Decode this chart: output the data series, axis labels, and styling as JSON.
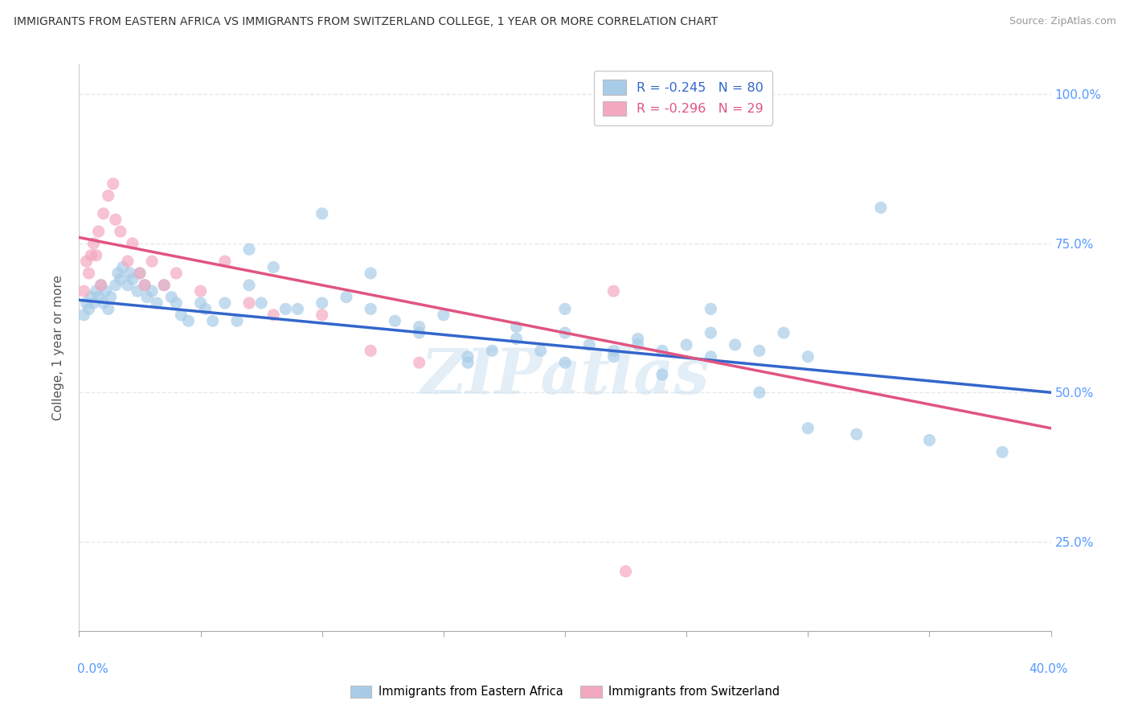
{
  "title": "IMMIGRANTS FROM EASTERN AFRICA VS IMMIGRANTS FROM SWITZERLAND COLLEGE, 1 YEAR OR MORE CORRELATION CHART",
  "source": "Source: ZipAtlas.com",
  "ylabel_label": "College, 1 year or more",
  "blue_color": "#a8cce8",
  "pink_color": "#f4a8c0",
  "blue_line_color": "#3366cc",
  "pink_line_color": "#e05580",
  "watermark": "ZIPatlas",
  "blue_scatter_x": [
    0.2,
    0.3,
    0.4,
    0.5,
    0.6,
    0.7,
    0.8,
    0.9,
    1.0,
    1.1,
    1.2,
    1.3,
    1.5,
    1.6,
    1.7,
    1.8,
    2.0,
    2.1,
    2.2,
    2.4,
    2.5,
    2.7,
    2.8,
    3.0,
    3.2,
    3.5,
    3.8,
    4.0,
    4.2,
    4.5,
    5.0,
    5.2,
    5.5,
    6.0,
    6.5,
    7.0,
    7.5,
    8.0,
    9.0,
    10.0,
    11.0,
    12.0,
    13.0,
    14.0,
    15.0,
    16.0,
    17.0,
    18.0,
    19.0,
    20.0,
    21.0,
    22.0,
    23.0,
    24.0,
    25.0,
    26.0,
    27.0,
    28.0,
    29.0,
    30.0,
    20.0,
    23.0,
    26.0,
    33.0,
    35.0,
    38.0,
    7.0,
    8.5,
    10.0,
    12.0,
    14.0,
    16.0,
    18.0,
    20.0,
    22.0,
    24.0,
    26.0,
    28.0,
    30.0,
    32.0
  ],
  "blue_scatter_y": [
    63,
    65,
    64,
    66,
    65,
    67,
    66,
    68,
    65,
    67,
    64,
    66,
    68,
    70,
    69,
    71,
    68,
    70,
    69,
    67,
    70,
    68,
    66,
    67,
    65,
    68,
    66,
    65,
    63,
    62,
    65,
    64,
    62,
    65,
    62,
    68,
    65,
    71,
    64,
    65,
    66,
    64,
    62,
    60,
    63,
    55,
    57,
    59,
    57,
    60,
    58,
    56,
    59,
    57,
    58,
    60,
    58,
    57,
    60,
    56,
    64,
    58,
    64,
    81,
    42,
    40,
    74,
    64,
    80,
    70,
    61,
    56,
    61,
    55,
    57,
    53,
    56,
    50,
    44,
    43
  ],
  "pink_scatter_x": [
    0.2,
    0.3,
    0.4,
    0.5,
    0.6,
    0.7,
    0.8,
    0.9,
    1.0,
    1.2,
    1.4,
    1.5,
    1.7,
    2.0,
    2.2,
    2.5,
    2.7,
    3.0,
    3.5,
    4.0,
    5.0,
    6.0,
    7.0,
    8.0,
    10.0,
    12.0,
    14.0,
    22.0,
    22.5
  ],
  "pink_scatter_y": [
    67,
    72,
    70,
    73,
    75,
    73,
    77,
    68,
    80,
    83,
    85,
    79,
    77,
    72,
    75,
    70,
    68,
    72,
    68,
    70,
    67,
    72,
    65,
    63,
    63,
    57,
    55,
    67,
    20
  ],
  "blue_line_x": [
    0,
    40
  ],
  "blue_line_y": [
    65.5,
    50.0
  ],
  "pink_line_x": [
    0,
    40
  ],
  "pink_line_y": [
    76.0,
    44.0
  ],
  "xmin": 0,
  "xmax": 40,
  "ymin": 10,
  "ymax": 105,
  "yticks": [
    25,
    50,
    75,
    100
  ],
  "background_color": "#ffffff",
  "grid_color": "#e8e8e8"
}
